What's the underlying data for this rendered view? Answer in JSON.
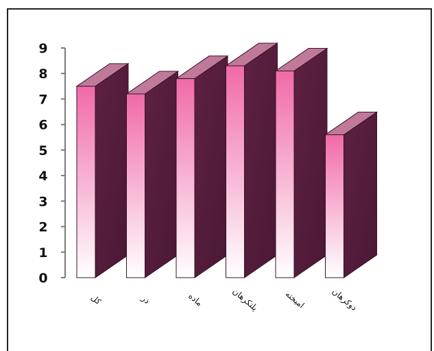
{
  "chart_data": {
    "type": "bar",
    "categories": [
      "کل",
      "ذر",
      "ماده",
      "پلتکرهان",
      "امیخته",
      "دوکرهان"
    ],
    "values": [
      7.5,
      7.2,
      7.8,
      8.3,
      8.1,
      5.6
    ],
    "ylim": [
      0,
      9
    ],
    "yticks": [
      "0",
      "1",
      "2",
      "3",
      "4",
      "5",
      "6",
      "7",
      "8",
      "9"
    ],
    "grid": false,
    "legend": "none",
    "title": "",
    "xlabel": "",
    "ylabel": ""
  },
  "colors": {
    "front_top": "#f06aa8",
    "front_bottom": "#ffffff",
    "side": "#5e2142",
    "top": "#c07a99",
    "axis": "#7a7a7a"
  }
}
